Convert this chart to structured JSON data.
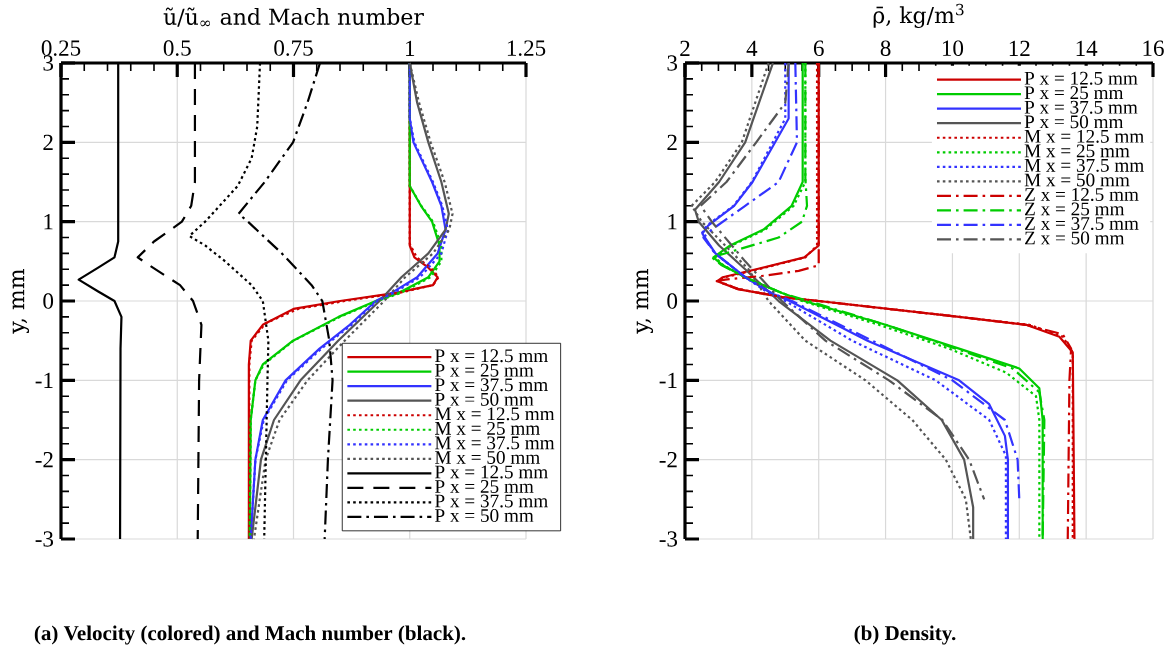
{
  "chart_data": [
    {
      "type": "line",
      "xlabel": "ũ/ũ$_{∞}$ and Mach number",
      "ylabel": "y, mm",
      "annotations": [
        "(a) Velocity (colored) and Mach number (black)."
      ],
      "xlim": [
        0.25,
        1.25
      ],
      "ylim": [
        -3,
        3
      ],
      "xticks": [
        0.25,
        0.5,
        0.75,
        1,
        1.25
      ],
      "yticks": [
        -3,
        -2,
        -1,
        0,
        1,
        2,
        3
      ],
      "grid": true,
      "legend": "bottom right",
      "series": [
        {
          "name": "P x = 12.5 mm",
          "color": "#cc0000",
          "line_style": "solid",
          "x": [
            1.0,
            1.0,
            1.01,
            1.04,
            1.06,
            1.05,
            0.967,
            0.85,
            0.75,
            0.684,
            0.658,
            0.654,
            0.654
          ],
          "values": [
            3,
            0.7,
            0.55,
            0.42,
            0.3,
            0.2,
            0.1,
            0,
            -0.1,
            -0.3,
            -0.5,
            -0.8,
            -3
          ]
        },
        {
          "name": "P x = 25 mm",
          "color": "#00cc00",
          "line_style": "solid",
          "x": [
            1.0,
            1.0,
            1.024,
            1.048,
            1.064,
            1.064,
            1.04,
            0.976,
            0.927,
            0.847,
            0.749,
            0.684,
            0.668,
            0.658,
            0.656
          ],
          "values": [
            3,
            1.45,
            1.2,
            1.0,
            0.7,
            0.5,
            0.3,
            0.1,
            0,
            -0.2,
            -0.5,
            -0.8,
            -1,
            -1.5,
            -3
          ]
        },
        {
          "name": "P x = 37.5 mm",
          "color": "#3333ff",
          "line_style": "solid",
          "x": [
            1.0,
            1.0,
            1.008,
            1.048,
            1.068,
            1.077,
            1.06,
            1.016,
            0.96,
            0.927,
            0.871,
            0.806,
            0.733,
            0.684,
            0.668,
            0.658
          ],
          "values": [
            3,
            2.3,
            2.0,
            1.5,
            1.2,
            0.9,
            0.6,
            0.3,
            0.1,
            0,
            -0.3,
            -0.6,
            -1,
            -1.5,
            -2,
            -3
          ]
        },
        {
          "name": "P x = 50 mm",
          "color": "#555555",
          "line_style": "solid",
          "x": [
            1.0,
            1.016,
            1.04,
            1.068,
            1.084,
            1.077,
            1.04,
            0.982,
            0.935,
            0.846,
            0.765,
            0.708,
            0.68,
            0.66
          ],
          "values": [
            3,
            2.5,
            2.0,
            1.5,
            1.1,
            0.9,
            0.6,
            0.3,
            0,
            -0.5,
            -1,
            -1.5,
            -2,
            -3
          ]
        },
        {
          "name": "M x = 12.5 mm",
          "color": "#cc0000",
          "line_style": "dotted",
          "x": [
            1.0,
            1.0,
            1.015,
            1.045,
            1.062,
            1.05,
            0.975,
            0.86,
            0.76,
            0.69,
            0.66,
            0.655,
            0.655
          ],
          "values": [
            3,
            0.72,
            0.55,
            0.42,
            0.3,
            0.2,
            0.1,
            0,
            -0.1,
            -0.28,
            -0.5,
            -0.8,
            -3
          ]
        },
        {
          "name": "M x = 25 mm",
          "color": "#00cc00",
          "line_style": "dotted",
          "x": [
            1.0,
            1.0,
            1.025,
            1.05,
            1.068,
            1.068,
            1.045,
            0.98,
            0.93,
            0.85,
            0.75,
            0.686,
            0.668,
            0.658,
            0.656
          ],
          "values": [
            3,
            1.45,
            1.2,
            1.0,
            0.7,
            0.5,
            0.3,
            0.1,
            0,
            -0.2,
            -0.5,
            -0.8,
            -1,
            -1.5,
            -3
          ]
        },
        {
          "name": "M x = 37.5 mm",
          "color": "#3333ff",
          "line_style": "dotted",
          "x": [
            1.0,
            1.0,
            1.01,
            1.05,
            1.07,
            1.082,
            1.068,
            1.022,
            0.965,
            0.93,
            0.875,
            0.81,
            0.736,
            0.686,
            0.668,
            0.658
          ],
          "values": [
            3,
            2.3,
            2.0,
            1.5,
            1.2,
            0.9,
            0.6,
            0.3,
            0.1,
            0,
            -0.3,
            -0.6,
            -1,
            -1.5,
            -2,
            -3
          ]
        },
        {
          "name": "M x = 50 mm",
          "color": "#555555",
          "line_style": "dotted",
          "x": [
            1.0,
            1.02,
            1.045,
            1.075,
            1.092,
            1.085,
            1.05,
            0.99,
            0.945,
            0.86,
            0.78,
            0.72,
            0.69,
            0.665
          ],
          "values": [
            3,
            2.5,
            2.0,
            1.5,
            1.1,
            0.9,
            0.6,
            0.3,
            0,
            -0.5,
            -1,
            -1.5,
            -2,
            -3
          ]
        },
        {
          "name": "P x = 12.5 mm",
          "color": "#000000",
          "line_style": "solid",
          "x": [
            0.373,
            0.373,
            0.365,
            0.33,
            0.288,
            0.33,
            0.365,
            0.38,
            0.378,
            0.377
          ],
          "values": [
            3,
            0.75,
            0.55,
            0.42,
            0.27,
            0.12,
            0,
            -0.2,
            -0.6,
            -3
          ]
        },
        {
          "name": "P x = 25 mm",
          "color": "#000000",
          "line_style": "dashed",
          "x": [
            0.538,
            0.538,
            0.53,
            0.51,
            0.45,
            0.415,
            0.44,
            0.506,
            0.534,
            0.552,
            0.547,
            0.544
          ],
          "values": [
            3,
            1.5,
            1.2,
            1.0,
            0.75,
            0.55,
            0.45,
            0.2,
            0,
            -0.3,
            -1,
            -3
          ]
        },
        {
          "name": "P x = 37.5 mm",
          "color": "#000000",
          "line_style": "dotted",
          "x": [
            0.678,
            0.672,
            0.66,
            0.63,
            0.56,
            0.526,
            0.56,
            0.603,
            0.66,
            0.684,
            0.696,
            0.694,
            0.687
          ],
          "values": [
            3,
            2.2,
            1.8,
            1.45,
            1.0,
            0.82,
            0.7,
            0.5,
            0.2,
            0,
            -0.5,
            -1,
            -3
          ]
        },
        {
          "name": "P x = 50 mm",
          "color": "#000000",
          "line_style": "dashdot",
          "x": [
            0.807,
            0.78,
            0.749,
            0.688,
            0.632,
            0.652,
            0.725,
            0.789,
            0.812,
            0.827,
            0.834,
            0.824,
            0.817
          ],
          "values": [
            3,
            2.5,
            2,
            1.5,
            1.1,
            1.0,
            0.6,
            0.2,
            0,
            -0.5,
            -1,
            -2,
            -3
          ]
        }
      ]
    },
    {
      "type": "line",
      "xlabel": "ρ̄, kg/m$^{3}$",
      "ylabel": "y, mm",
      "annotations": [
        "(b) Density."
      ],
      "xlim": [
        2,
        16
      ],
      "ylim": [
        -3,
        3
      ],
      "xticks": [
        2,
        4,
        6,
        8,
        10,
        12,
        14,
        16
      ],
      "yticks": [
        -3,
        -2,
        -1,
        0,
        1,
        2,
        3
      ],
      "grid": true,
      "legend": "top right",
      "series": [
        {
          "name": "P x = 12.5 mm",
          "color": "#cc0000",
          "line_style": "solid",
          "x": [
            6.0,
            6.0,
            5.57,
            4.13,
            3.13,
            2.97,
            3.58,
            4.9,
            6.0,
            10.2,
            12.2,
            13.2,
            13.6,
            13.65
          ],
          "values": [
            3,
            0.7,
            0.55,
            0.4,
            0.3,
            0.25,
            0.15,
            0.05,
            0,
            -0.2,
            -0.3,
            -0.45,
            -0.65,
            -3
          ]
        },
        {
          "name": "P x = 25 mm",
          "color": "#00cc00",
          "line_style": "solid",
          "x": [
            5.52,
            5.52,
            5.19,
            4.35,
            3.35,
            2.85,
            3.13,
            3.8,
            4.9,
            5.57,
            8.0,
            10.2,
            12.0,
            12.6,
            12.7,
            12.7
          ],
          "values": [
            3,
            1.5,
            1.2,
            0.9,
            0.7,
            0.55,
            0.45,
            0.3,
            0.1,
            0,
            -0.3,
            -0.6,
            -0.85,
            -1.1,
            -1.5,
            -3
          ]
        },
        {
          "name": "P x = 37.5 mm",
          "color": "#3333ff",
          "line_style": "solid",
          "x": [
            5.1,
            5.1,
            4.02,
            3.47,
            2.69,
            2.52,
            2.91,
            3.8,
            4.57,
            5.13,
            7.46,
            10.2,
            11.1,
            11.57,
            11.66,
            11.66
          ],
          "values": [
            3,
            2.3,
            1.5,
            1.2,
            0.95,
            0.85,
            0.6,
            0.3,
            0.1,
            0,
            -0.5,
            -1,
            -1.3,
            -1.7,
            -2,
            -3
          ]
        },
        {
          "name": "P x = 50 mm",
          "color": "#555555",
          "line_style": "solid",
          "x": [
            4.63,
            3.8,
            3.02,
            2.3,
            2.41,
            3.02,
            3.8,
            4.8,
            6.35,
            8.35,
            9.68,
            10.35,
            10.62,
            10.62
          ],
          "values": [
            3,
            2,
            1.5,
            1.15,
            1.0,
            0.7,
            0.4,
            0,
            -0.5,
            -1,
            -1.5,
            -2,
            -2.6,
            -3
          ]
        },
        {
          "name": "M x = 12.5 mm",
          "color": "#cc0000",
          "line_style": "dotted",
          "x": [
            5.95,
            5.95,
            5.6,
            4.2,
            3.2,
            3.0,
            3.6,
            4.9,
            6.0,
            10.2,
            12.3,
            13.3,
            13.6,
            13.6
          ],
          "values": [
            3,
            0.7,
            0.55,
            0.4,
            0.3,
            0.25,
            0.15,
            0.05,
            0,
            -0.2,
            -0.3,
            -0.45,
            -0.65,
            -3
          ]
        },
        {
          "name": "M x = 25 mm",
          "color": "#00cc00",
          "line_style": "dotted",
          "x": [
            5.6,
            5.6,
            5.25,
            4.4,
            3.4,
            2.9,
            3.15,
            3.8,
            4.9,
            5.5,
            7.8,
            9.9,
            11.6,
            12.5,
            12.6,
            12.6
          ],
          "values": [
            3,
            1.5,
            1.2,
            0.9,
            0.7,
            0.55,
            0.45,
            0.3,
            0.1,
            0,
            -0.3,
            -0.6,
            -0.9,
            -1.2,
            -1.5,
            -3
          ]
        },
        {
          "name": "M x = 37.5 mm",
          "color": "#3333ff",
          "line_style": "dotted",
          "x": [
            5.0,
            5.0,
            4.0,
            3.45,
            2.65,
            2.5,
            2.9,
            3.8,
            4.5,
            5.0,
            7.0,
            9.5,
            11.1,
            11.6,
            11.6
          ],
          "values": [
            3,
            2.3,
            1.5,
            1.2,
            0.95,
            0.85,
            0.6,
            0.3,
            0.1,
            0,
            -0.5,
            -1,
            -1.5,
            -1.95,
            -3
          ]
        },
        {
          "name": "M x = 50 mm",
          "color": "#555555",
          "line_style": "dotted",
          "x": [
            4.5,
            3.7,
            2.9,
            2.2,
            2.5,
            3.2,
            3.9,
            4.5,
            5.6,
            7.4,
            8.8,
            9.8,
            10.4,
            10.55
          ],
          "values": [
            3,
            2.0,
            1.5,
            1.2,
            1.0,
            0.7,
            0.4,
            0,
            -0.5,
            -1,
            -1.5,
            -2,
            -2.5,
            -3
          ]
        },
        {
          "name": "Z x = 12.5 mm",
          "color": "#cc0000",
          "line_style": "dashdot",
          "x": [
            6.0,
            6.0,
            5.4,
            4.4,
            3.2,
            2.95,
            3.6,
            4.9,
            6.0,
            10.2,
            12.2,
            13.3,
            13.55,
            13.5,
            13.45
          ],
          "values": [
            3,
            0.45,
            0.38,
            0.32,
            0.27,
            0.25,
            0.15,
            0.05,
            0,
            -0.2,
            -0.3,
            -0.42,
            -0.6,
            -1,
            -3
          ]
        },
        {
          "name": "Z x = 25 mm",
          "color": "#00cc00",
          "line_style": "dashdot",
          "x": [
            5.6,
            5.6,
            5.65,
            5.5,
            4.8,
            3.6,
            2.8,
            3.1,
            3.8,
            4.9,
            5.7,
            8.0,
            10.1,
            11.8,
            12.6,
            12.75,
            12.7
          ],
          "values": [
            3,
            1.55,
            1.2,
            1.0,
            0.8,
            0.65,
            0.55,
            0.45,
            0.3,
            0.1,
            0,
            -0.3,
            -0.6,
            -0.85,
            -1.15,
            -1.5,
            -3
          ]
        },
        {
          "name": "Z x = 37.5 mm",
          "color": "#3333ff",
          "line_style": "dashdot",
          "x": [
            5.3,
            5.35,
            4.8,
            3.8,
            2.8,
            2.55,
            2.9,
            3.8,
            4.6,
            5.2,
            7.6,
            10.0,
            11.57,
            11.95,
            12.0
          ],
          "values": [
            3,
            2.0,
            1.5,
            1.2,
            0.9,
            0.8,
            0.6,
            0.3,
            0.1,
            0,
            -0.5,
            -1,
            -1.5,
            -2,
            -2.5
          ]
        },
        {
          "name": "Z x = 50 mm",
          "color": "#555555",
          "line_style": "dashdot",
          "x": [
            5.1,
            5.0,
            4.13,
            3.24,
            2.47,
            2.8,
            3.8,
            4.9,
            6.2,
            8.1,
            9.7,
            10.5,
            10.95
          ],
          "values": [
            3,
            2.5,
            2,
            1.5,
            1.2,
            1.0,
            0.5,
            0,
            -0.5,
            -1,
            -1.5,
            -2,
            -2.5
          ]
        }
      ]
    }
  ]
}
